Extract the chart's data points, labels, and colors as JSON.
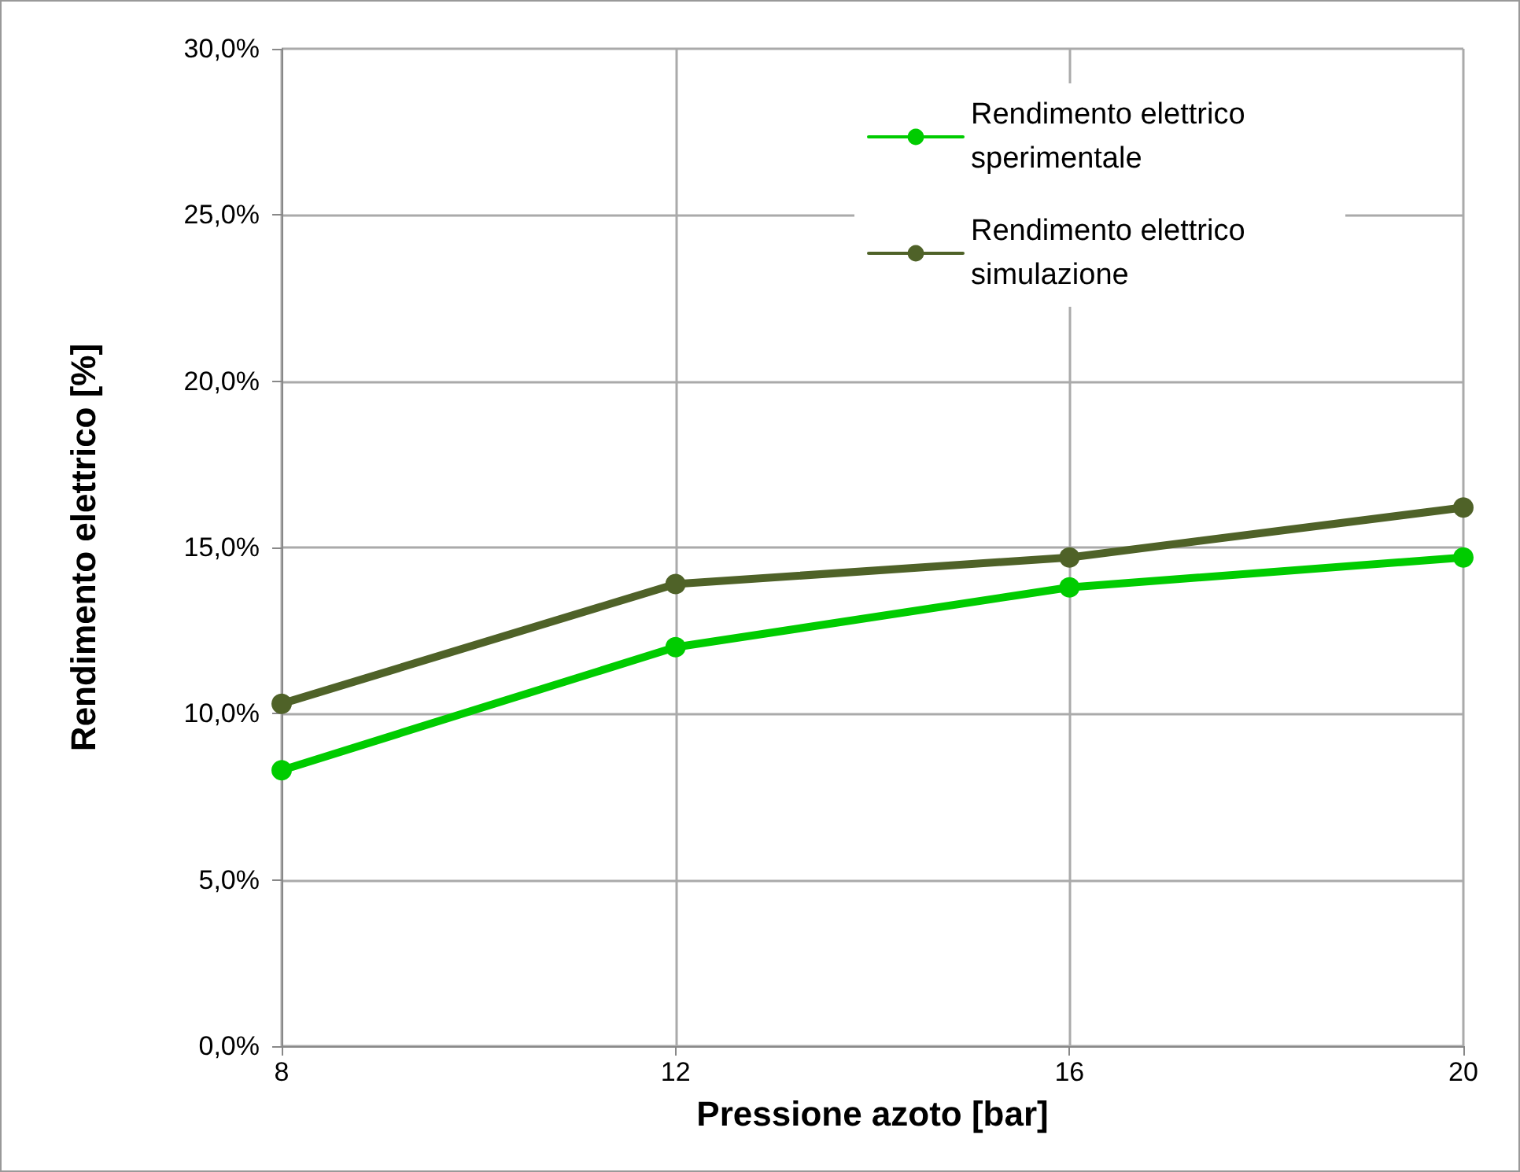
{
  "chart_data": {
    "type": "line",
    "xlabel": "Pressione azoto [bar]",
    "ylabel": "Rendimento elettrico [%]",
    "x": [
      8,
      12,
      16,
      20
    ],
    "series": [
      {
        "name": "Rendimento elettrico sperimentale",
        "color": "#00cc00",
        "values": [
          8.3,
          12.0,
          13.8,
          14.7
        ]
      },
      {
        "name": "Rendimento elettrico simulazione",
        "color": "#4f6228",
        "values": [
          10.3,
          13.9,
          14.7,
          16.2
        ]
      }
    ],
    "xlim": [
      8,
      20
    ],
    "xticks": [
      8,
      12,
      16,
      20
    ],
    "ylim": [
      0,
      30
    ],
    "yticks": [
      {
        "value": 0,
        "label": "0,0%"
      },
      {
        "value": 5,
        "label": "5,0%"
      },
      {
        "value": 10,
        "label": "10,0%"
      },
      {
        "value": 15,
        "label": "15,0%"
      },
      {
        "value": 20,
        "label": "20,0%"
      },
      {
        "value": 25,
        "label": "25,0%"
      },
      {
        "value": 30,
        "label": "30,0%"
      }
    ],
    "grid": true,
    "legend": "top right",
    "marker": "circle",
    "line_style": "solid"
  }
}
